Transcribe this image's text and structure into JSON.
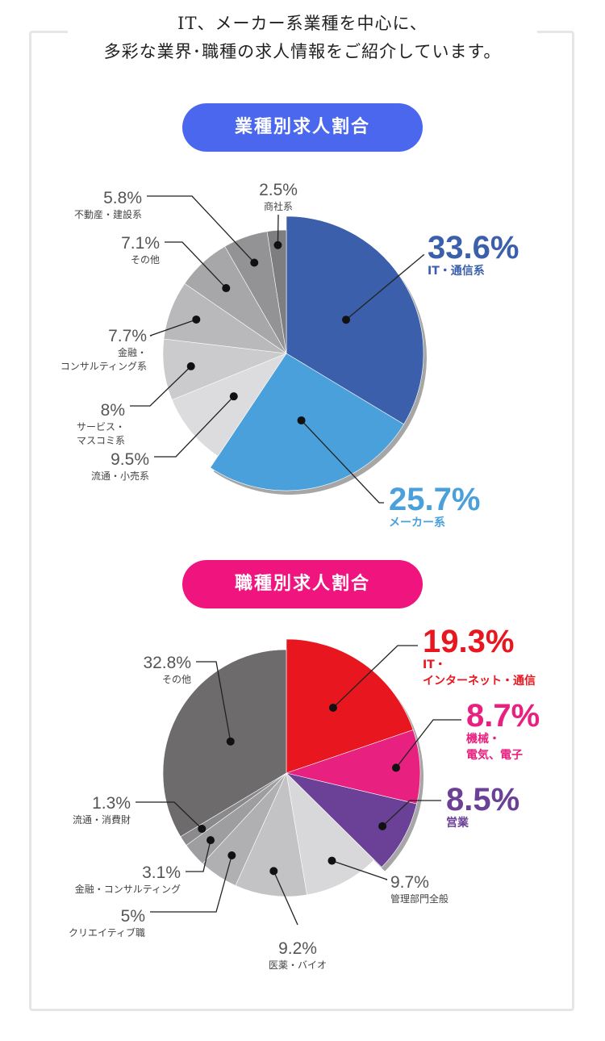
{
  "heading": {
    "line1": "IT、メーカー系業種を中心に、",
    "line2": "多彩な業界･職種の求人情報をご紹介しています。"
  },
  "colors": {
    "blue_pill": "#4a67ee",
    "pink_pill": "#f0147f",
    "frame": "#e6e6e6",
    "leader": "#222222"
  },
  "chart_data": [
    {
      "type": "pie",
      "title": "業種別求人割合",
      "slices": [
        {
          "value": 33.6,
          "label": "33.6%",
          "name": [
            "IT・通信系"
          ],
          "color": "#3b5fab",
          "highlight": true,
          "pctColor": "#3b5fab",
          "nameColor": "#3b5fab"
        },
        {
          "value": 25.7,
          "label": "25.7%",
          "name": [
            "メーカー系"
          ],
          "color": "#4aa0da",
          "highlight": true,
          "pctColor": "#4aa0da",
          "nameColor": "#4aa0da"
        },
        {
          "value": 9.5,
          "label": "9.5%",
          "name": [
            "流通・小売系"
          ],
          "color": "#dcdcde"
        },
        {
          "value": 8,
          "label": "8%",
          "name": [
            "サービス・",
            "マスコミ系"
          ],
          "color": "#cbcbcd"
        },
        {
          "value": 7.7,
          "label": "7.7%",
          "name": [
            "金融・",
            "コンサルティング系"
          ],
          "color": "#b9b9bb"
        },
        {
          "value": 7.1,
          "label": "7.1%",
          "name": [
            "その他"
          ],
          "color": "#a7a7a9"
        },
        {
          "value": 5.8,
          "label": "5.8%",
          "name": [
            "不動産・建設系"
          ],
          "color": "#939395"
        },
        {
          "value": 2.5,
          "label": "2.5%",
          "name": [
            "商社系"
          ],
          "color": "#7e7e80"
        }
      ]
    },
    {
      "type": "pie",
      "title": "職種別求人割合",
      "slices": [
        {
          "value": 19.3,
          "label": "19.3%",
          "name": [
            "IT・",
            "インターネット・通信"
          ],
          "color": "#e8161e",
          "highlight": true,
          "pctColor": "#e8161e",
          "nameColor": "#e8161e"
        },
        {
          "value": 8.7,
          "label": "8.7%",
          "name": [
            "機械・",
            "電気、電子"
          ],
          "color": "#e8207f",
          "highlight": true,
          "pctColor": "#e8207f",
          "nameColor": "#e8207f"
        },
        {
          "value": 8.5,
          "label": "8.5%",
          "name": [
            "営業"
          ],
          "color": "#6a4196",
          "highlight": true,
          "pctColor": "#6a4196",
          "nameColor": "#6a4196"
        },
        {
          "value": 9.7,
          "label": "9.7%",
          "name": [
            "管理部門全般"
          ],
          "color": "#d8d8da"
        },
        {
          "value": 9.2,
          "label": "9.2%",
          "name": [
            "医薬・バイオ"
          ],
          "color": "#c3c3c5"
        },
        {
          "value": 5,
          "label": "5%",
          "name": [
            "クリエイティブ職"
          ],
          "color": "#b0b0b2"
        },
        {
          "value": 3.1,
          "label": "3.1%",
          "name": [
            "金融・コンサルティング"
          ],
          "color": "#9e9ea0"
        },
        {
          "value": 1.3,
          "label": "1.3%",
          "name": [
            "流通・消費財"
          ],
          "color": "#8a8a8c"
        },
        {
          "value": 32.8,
          "label": "32.8%",
          "name": [
            "その他"
          ],
          "color": "#6e6b6c"
        }
      ]
    }
  ]
}
